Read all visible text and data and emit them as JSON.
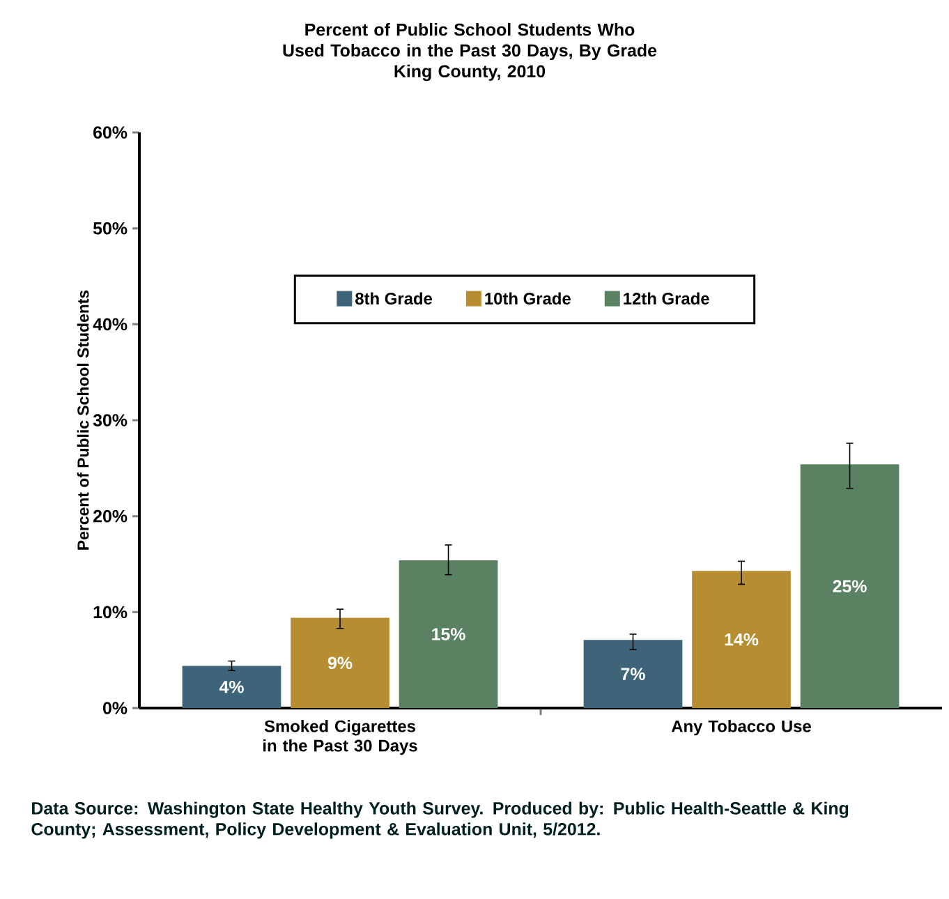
{
  "chart_data": {
    "type": "bar",
    "title": "Percent of Public School Students Who Used Tobacco in the Past 30 Days, By Grade",
    "subtitle": "King County, 2010",
    "ylabel": "Percent of Public School Students",
    "categories": [
      "Smoked Cigarettes in the Past 30 Days",
      "Any Tobacco Use"
    ],
    "series": [
      {
        "name": "8th Grade",
        "color": "#3d6478",
        "values": [
          4.4,
          7.1
        ],
        "errors": [
          [
            3.9,
            4.9
          ],
          [
            6.1,
            7.7
          ]
        ],
        "value_labels": [
          "4%",
          "7%"
        ]
      },
      {
        "name": "10th Grade",
        "color": "#b68d30",
        "values": [
          9.4,
          14.3
        ],
        "errors": [
          [
            8.3,
            10.3
          ],
          [
            12.9,
            15.3
          ]
        ],
        "value_labels": [
          "9%",
          "14%"
        ]
      },
      {
        "name": "12th Grade",
        "color": "#5a8262",
        "values": [
          15.4,
          25.4
        ],
        "errors": [
          [
            13.9,
            17.0
          ],
          [
            22.9,
            27.6
          ]
        ],
        "value_labels": [
          "15%",
          "25%"
        ]
      }
    ],
    "ylim": [
      0,
      60
    ],
    "yticks": [
      {
        "value": 0,
        "label": "0%"
      },
      {
        "value": 10,
        "label": "10%"
      },
      {
        "value": 20,
        "label": "20%"
      },
      {
        "value": 30,
        "label": "30%"
      },
      {
        "value": 40,
        "label": "40%"
      },
      {
        "value": 50,
        "label": "50%"
      },
      {
        "value": 60,
        "label": "60%"
      }
    ],
    "legend": "top",
    "annotations": [
      "Data Source: Washington State Healthy Youth Survey. Produced by: Public Health-Seattle & King County; Assessment, Policy Development & Evaluation Unit, 5/2012."
    ]
  }
}
